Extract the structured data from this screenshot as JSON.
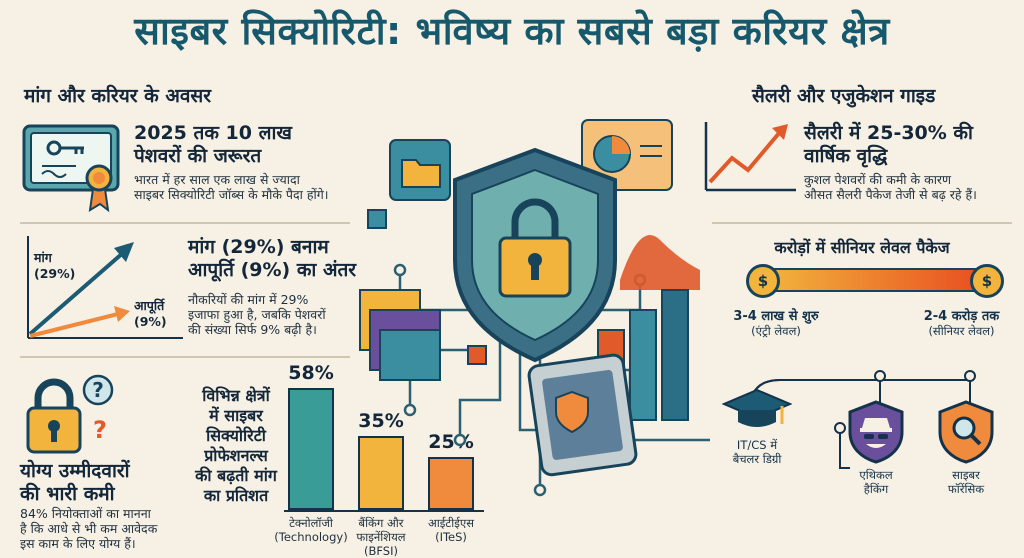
{
  "title": "साइबर सिक्योरिटी: भविष्य का सबसे बड़ा करियर क्षेत्र",
  "left": {
    "section_heading": "मांग और करियर के अवसर",
    "demand": {
      "heading_line1": "2025 तक 10 लाख",
      "heading_line2": "पेशवरों की जरूरत",
      "desc_line1": "भारत में हर साल एक लाख से ज्यादा",
      "desc_line2": "साइबर सिक्योरिटी जॉब्स के मौके पैदा होंगे।"
    },
    "gap": {
      "chart_label_demand": "मांग",
      "chart_value_demand": "(29%)",
      "chart_label_supply": "आपूर्ति",
      "chart_value_supply": "(9%)",
      "heading_line1": "मांग (29%) बनाम",
      "heading_line2": "आपूर्ति (9%) का अंतर",
      "desc_line1": "नौकरियों की मांग में 29%",
      "desc_line2": "इजाफा हुआ है, जबकि पेशवरों",
      "desc_line3": "की संख्या सिर्फ 9% बढ़ी है।"
    },
    "shortage": {
      "heading_line1": "योग्य उम्मीदवारों",
      "heading_line2": "की भारी कमी",
      "desc_line1": "84% नियोक्ताओं का मानना",
      "desc_line2": "है कि आधे से भी कम आवेदक",
      "desc_line3": "इस काम के लिए योग्य हैं।"
    }
  },
  "growth_chart": {
    "heading_line1": "विभिन्न क्षेत्रों",
    "heading_line2": "में साइबर",
    "heading_line3": "सिक्योरिटी",
    "heading_line4": "प्रोफेशनल्स",
    "heading_line5": "की बढ़ती मांग",
    "heading_line6": "का प्रतिशत"
  },
  "chart_data": {
    "type": "bar",
    "categories": [
      "टेक्नोलॉजी (Technology)",
      "बैंकिंग और फाइनेंशियल (BFSI)",
      "आईटीईएस (ITeS)"
    ],
    "values": [
      58,
      35,
      25
    ],
    "value_labels": [
      "58%",
      "35%",
      "25%"
    ],
    "category_lines": [
      [
        "टेक्नोलॉजी",
        "(Technology)"
      ],
      [
        "बैंकिंग और",
        "फाइनेंशियल",
        "(BFSI)"
      ],
      [
        "आईटीईएस",
        "(ITeS)"
      ]
    ],
    "colors": [
      "#3a9c96",
      "#f2b43c",
      "#f08a3c"
    ]
  },
  "right": {
    "section_heading": "सैलरी और एजुकेशन गाइड",
    "salary": {
      "heading_line1": "सैलरी में 25-30% की",
      "heading_line2": "वार्षिक वृद्धि",
      "desc_line1": "कुशल पेशवरों की कमी के कारण",
      "desc_line2": "औसत सैलरी पैकेज तेजी से बढ़ रहे हैं।"
    },
    "packages": {
      "heading": "करोड़ों में सीनियर लेवल पैकेज",
      "start_amount": "3-4 लाख से शुरु",
      "start_level": "(एंट्री लेवल)",
      "end_amount": "2-4 करोड़ तक",
      "end_level": "(सीनियर लेवल)",
      "coin_symbol": "$"
    },
    "education": {
      "degree_line1": "IT/CS में",
      "degree_line2": "बैचलर डिग्री",
      "ethical_line1": "एथिकल",
      "ethical_line2": "हैकिंग",
      "forensics_line1": "साइबर",
      "forensics_line2": "फॉरेंसिक"
    }
  },
  "colors": {
    "title": "#17596c",
    "teal": "#2f8f94",
    "orange": "#f08a3c",
    "yellow": "#f2b43c",
    "navy": "#14324a",
    "purple": "#6a4f9c"
  }
}
